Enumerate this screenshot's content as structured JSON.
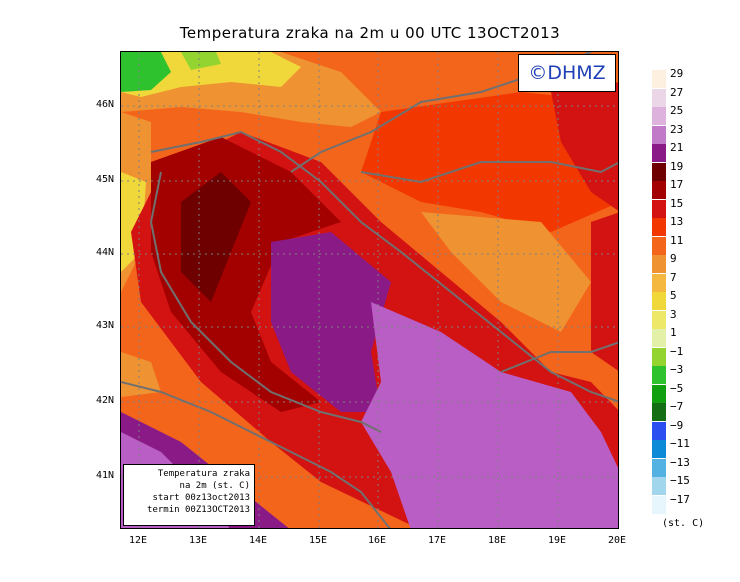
{
  "title": "Temperatura zraka na 2m u 00 UTC 13OCT2013",
  "copyright": "©DHMZ",
  "info": {
    "line1": "Temperatura zraka",
    "line2": "na 2m (st. C)",
    "line3": "start 00z13oct2013",
    "line4": "termin 00Z13OCT2013"
  },
  "axes": {
    "x_ticks": [
      "12E",
      "13E",
      "14E",
      "15E",
      "16E",
      "17E",
      "18E",
      "19E",
      "20E"
    ],
    "y_ticks": [
      "46N",
      "45N",
      "44N",
      "43N",
      "42N",
      "41N"
    ]
  },
  "legend": {
    "unit": "(st. C)",
    "labels": [
      "29",
      "27",
      "25",
      "23",
      "21",
      "19",
      "17",
      "15",
      "13",
      "11",
      "9",
      "7",
      "5",
      "3",
      "1",
      "−1",
      "−3",
      "−5",
      "−7",
      "−9",
      "−11",
      "−13",
      "−15",
      "−17"
    ],
    "colors": [
      "#fdf0e0",
      "#ead6e6",
      "#ddb2dc",
      "#c07ac8",
      "#8a1a86",
      "#6e0000",
      "#a30000",
      "#d31212",
      "#f23800",
      "#f4651c",
      "#ef9232",
      "#f4b840",
      "#f1d83a",
      "#ede868",
      "#e2f0a8",
      "#94d430",
      "#2ec22e",
      "#10a010",
      "#146e14",
      "#2a4ef0",
      "#0c8ad8",
      "#54b2e2",
      "#a2d6ec",
      "#e6f6fc"
    ]
  },
  "palette": {
    "sea_purple": "#8a1a86",
    "sea_light": "#b85ec4",
    "deep_red": "#6e0000",
    "dark_red": "#a30000",
    "red": "#d31212",
    "orange_red": "#f23800",
    "orange": "#f4651c",
    "light_orange": "#ef9232",
    "yellow": "#f1d83a",
    "green": "#2ec22e",
    "border_gray": "#707070",
    "copyright_blue": "#1e3fb8"
  }
}
